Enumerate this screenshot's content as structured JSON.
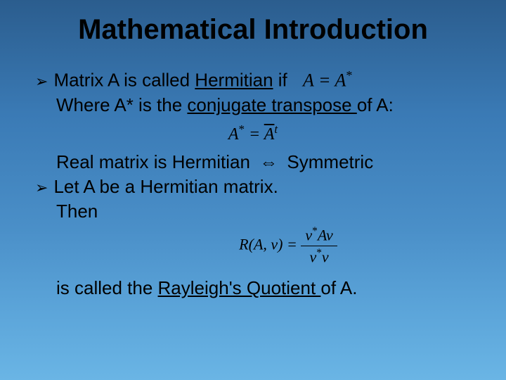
{
  "slide": {
    "title": "Mathematical Introduction",
    "background_gradient": [
      "#2b5d8e",
      "#3a7ab5",
      "#4a8fc8",
      "#5aa3d8",
      "#6ab5e5"
    ],
    "text_color": "#000000",
    "title_fontsize": 40,
    "body_fontsize": 26,
    "bullets": [
      {
        "marker": "➢",
        "text_parts": {
          "prefix": "Matrix A is called ",
          "underlined": "Hermitian",
          "suffix": " if"
        },
        "formula_inline": "A = A*"
      }
    ],
    "line_where": {
      "prefix": "Where A* is the ",
      "underlined": "conjugate transpose ",
      "suffix": "of A:"
    },
    "formula_conjugate": {
      "left": "A*",
      "equals": " = ",
      "right_overline": "A",
      "right_super": "t"
    },
    "line_real": {
      "prefix": "Real matrix is Hermitian",
      "arrow": "⇔",
      "suffix": "Symmetric"
    },
    "bullet_let": {
      "marker": "➢",
      "text": "Let  A be a Hermitian matrix."
    },
    "line_then": "Then",
    "formula_rayleigh": {
      "func": "R(A, v)",
      "equals": " = ",
      "numerator": "v*Av",
      "denominator": "v*v"
    },
    "line_rayleigh": {
      "prefix": "is called the ",
      "underlined": "Rayleigh's Quotient ",
      "suffix": "of A."
    }
  }
}
